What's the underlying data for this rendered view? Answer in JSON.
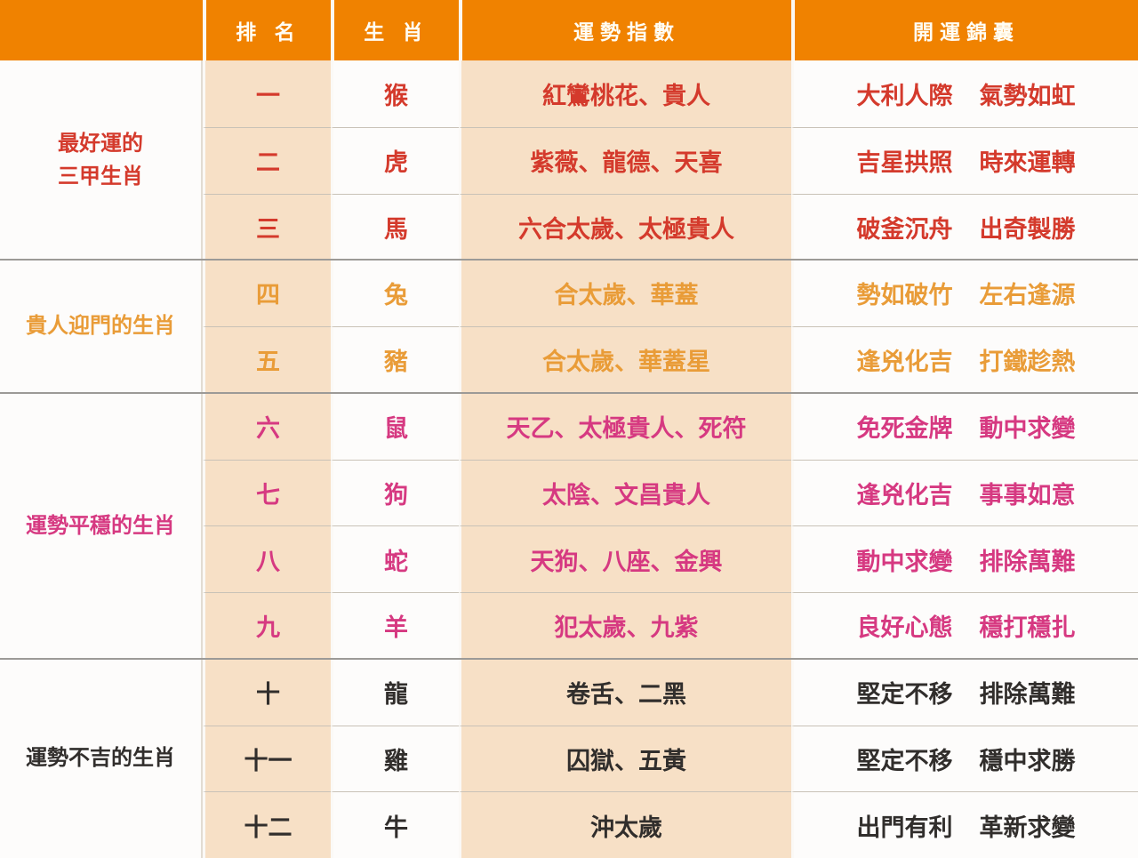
{
  "header": {
    "labels": [
      "",
      "排 名",
      "生 肖",
      "運勢指數",
      "開運錦囊"
    ]
  },
  "colors": {
    "header_bg": "#F08200",
    "header_text": "#FFFDF4",
    "peach_cell": "#F7E0C6",
    "white_cell": "#FDFCFB",
    "group1_red": "#D43A2C",
    "group2_orange": "#E99C38",
    "group3_magenta": "#D63981",
    "group4_black": "#312E2C"
  },
  "groups": [
    {
      "label_lines": [
        "最好運的",
        "三甲生肖"
      ],
      "color": "red",
      "rows": [
        {
          "rank": "一",
          "zodiac": "猴",
          "fortune": "紅鸞桃花、貴人",
          "tips": [
            "大利人際",
            "氣勢如虹"
          ]
        },
        {
          "rank": "二",
          "zodiac": "虎",
          "fortune": "紫薇、龍德、天喜",
          "tips": [
            "吉星拱照",
            "時來運轉"
          ]
        },
        {
          "rank": "三",
          "zodiac": "馬",
          "fortune": "六合太歲、太極貴人",
          "tips": [
            "破釜沉舟",
            "出奇製勝"
          ]
        }
      ]
    },
    {
      "label_lines": [
        "貴人迎門的生肖"
      ],
      "color": "orange",
      "rows": [
        {
          "rank": "四",
          "zodiac": "兔",
          "fortune": "合太歲、華蓋",
          "tips": [
            "勢如破竹",
            "左右逢源"
          ]
        },
        {
          "rank": "五",
          "zodiac": "豬",
          "fortune": "合太歲、華蓋星",
          "tips": [
            "逢兇化吉",
            "打鐵趁熱"
          ]
        }
      ]
    },
    {
      "label_lines": [
        "運勢平穩的生肖"
      ],
      "color": "magenta",
      "rows": [
        {
          "rank": "六",
          "zodiac": "鼠",
          "fortune": "天乙、太極貴人、死符",
          "tips": [
            "免死金牌",
            "動中求變"
          ]
        },
        {
          "rank": "七",
          "zodiac": "狗",
          "fortune": "太陰、文昌貴人",
          "tips": [
            "逢兇化吉",
            "事事如意"
          ]
        },
        {
          "rank": "八",
          "zodiac": "蛇",
          "fortune": "天狗、八座、金興",
          "tips": [
            "動中求變",
            "排除萬難"
          ]
        },
        {
          "rank": "九",
          "zodiac": "羊",
          "fortune": "犯太歲、九紫",
          "tips": [
            "良好心態",
            "穩打穩扎"
          ]
        }
      ]
    },
    {
      "label_lines": [
        "運勢不吉的生肖"
      ],
      "color": "black",
      "rows": [
        {
          "rank": "十",
          "zodiac": "龍",
          "fortune": "卷舌、二黑",
          "tips": [
            "堅定不移",
            "排除萬難"
          ]
        },
        {
          "rank": "十一",
          "zodiac": "雞",
          "fortune": "囚獄、五黃",
          "tips": [
            "堅定不移",
            "穩中求勝"
          ]
        },
        {
          "rank": "十二",
          "zodiac": "牛",
          "fortune": "沖太歲",
          "tips": [
            "出門有利",
            "革新求變"
          ]
        }
      ]
    }
  ]
}
